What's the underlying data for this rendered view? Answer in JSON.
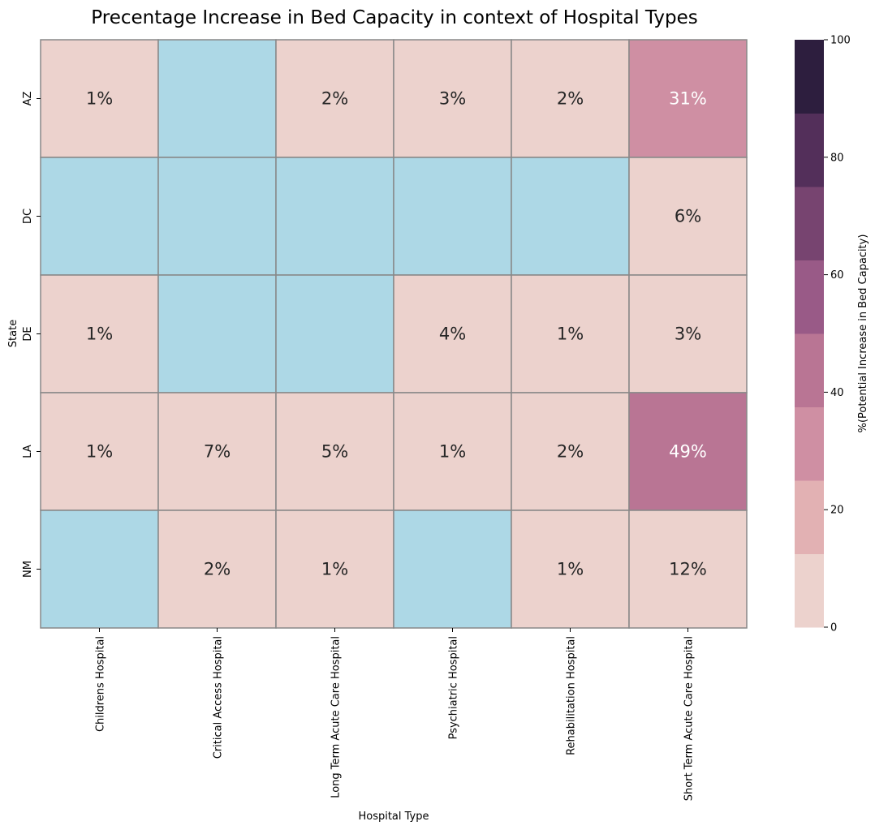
{
  "chart_data": {
    "type": "heatmap",
    "title": "Precentage Increase in Bed Capacity in context of Hospital Types",
    "xlabel": "Hospital Type",
    "ylabel": "State",
    "x_categories": [
      "Childrens Hospital",
      "Critical Access Hospital",
      "Long Term Acute Care Hospital",
      "Psychiatric Hospital",
      "Rehabilitation Hospital",
      "Short Term Acute Care Hospital"
    ],
    "y_categories": [
      "AZ",
      "DC",
      "DE",
      "LA",
      "NM"
    ],
    "values": [
      [
        1,
        null,
        2,
        3,
        2,
        31
      ],
      [
        null,
        null,
        null,
        null,
        null,
        6
      ],
      [
        1,
        null,
        null,
        4,
        1,
        3
      ],
      [
        1,
        7,
        5,
        1,
        2,
        49
      ],
      [
        null,
        2,
        1,
        null,
        1,
        12
      ]
    ],
    "value_suffix": "%",
    "missing_color": "#add8e6",
    "colorbar": {
      "label": "%(Potential Increase in Bed Capacity)",
      "range": [
        0,
        100
      ],
      "ticks": [
        0,
        20,
        40,
        60,
        80,
        100
      ],
      "colors": [
        "#ecd2cd",
        "#e2b1b3",
        "#cf8fa3",
        "#b97594",
        "#995a87",
        "#774470",
        "#532f5a",
        "#2d1e3e"
      ]
    }
  }
}
